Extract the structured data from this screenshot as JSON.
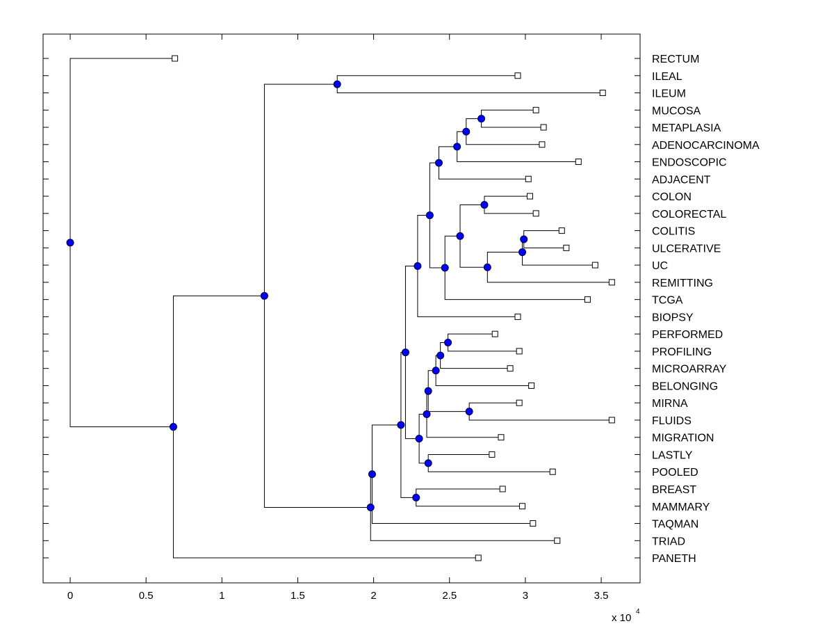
{
  "chart_data": {
    "type": "dendrogram",
    "title": "",
    "xlabel": "",
    "ylabel": "",
    "x_exponent_label": "x 10",
    "x_exponent_power": "4",
    "xlim": [
      -0.18,
      3.75
    ],
    "x_ticks": [
      0,
      0.5,
      1,
      1.5,
      2,
      2.5,
      3,
      3.5
    ],
    "x_tick_labels": [
      "0",
      "0.5",
      "1",
      "1.5",
      "2",
      "2.5",
      "3",
      "3.5"
    ],
    "grid": false,
    "colors": {
      "node_fill": "#0000ff",
      "line": "#000000",
      "leaf_fill": "#ffffff"
    },
    "leaves": [
      {
        "label": "RECTUM",
        "x": 0.69
      },
      {
        "label": "ILEAL",
        "x": 2.95
      },
      {
        "label": "ILEUM",
        "x": 3.51
      },
      {
        "label": "MUCOSA",
        "x": 3.07
      },
      {
        "label": "METAPLASIA",
        "x": 3.12
      },
      {
        "label": "ADENOCARCINOMA",
        "x": 3.11
      },
      {
        "label": "ENDOSCOPIC",
        "x": 3.35
      },
      {
        "label": "ADJACENT",
        "x": 3.02
      },
      {
        "label": "COLON",
        "x": 3.03
      },
      {
        "label": "COLORECTAL",
        "x": 3.07
      },
      {
        "label": "COLITIS",
        "x": 3.24
      },
      {
        "label": "ULCERATIVE",
        "x": 3.27
      },
      {
        "label": "UC",
        "x": 3.46
      },
      {
        "label": "REMITTING",
        "x": 3.57
      },
      {
        "label": "TCGA",
        "x": 3.41
      },
      {
        "label": "BIOPSY",
        "x": 2.95
      },
      {
        "label": "PERFORMED",
        "x": 2.8
      },
      {
        "label": "PROFILING",
        "x": 2.96
      },
      {
        "label": "MICROARRAY",
        "x": 2.9
      },
      {
        "label": "BELONGING",
        "x": 3.04
      },
      {
        "label": "MIRNA",
        "x": 2.96
      },
      {
        "label": "FLUIDS",
        "x": 3.57
      },
      {
        "label": "MIGRATION",
        "x": 2.84
      },
      {
        "label": "LASTLY",
        "x": 2.78
      },
      {
        "label": "POOLED",
        "x": 3.18
      },
      {
        "label": "BREAST",
        "x": 2.85
      },
      {
        "label": "MAMMARY",
        "x": 2.98
      },
      {
        "label": "TAQMAN",
        "x": 3.05
      },
      {
        "label": "TRIAD",
        "x": 3.21
      },
      {
        "label": "PANETH",
        "x": 2.69
      }
    ],
    "nodes": [
      {
        "id": "n_ileal_ileum",
        "x": 1.76,
        "children": [
          "L1",
          "L2"
        ]
      },
      {
        "id": "n_mucosa_metaplasia",
        "x": 2.71,
        "children": [
          "L3",
          "L4"
        ]
      },
      {
        "id": "n_adeno",
        "x": 2.61,
        "children": [
          "n_mucosa_metaplasia",
          "L5"
        ]
      },
      {
        "id": "n_endo",
        "x": 2.55,
        "children": [
          "n_adeno",
          "L6"
        ]
      },
      {
        "id": "n_adj",
        "x": 2.43,
        "children": [
          "n_endo",
          "L7"
        ]
      },
      {
        "id": "n_colon_colorectal",
        "x": 2.73,
        "children": [
          "L8",
          "L9"
        ]
      },
      {
        "id": "n_colitis_ulcerative",
        "x": 2.99,
        "children": [
          "L10",
          "L11"
        ]
      },
      {
        "id": "n_uc",
        "x": 2.98,
        "children": [
          "n_colitis_ulcerative",
          "L12"
        ]
      },
      {
        "id": "n_remitting",
        "x": 2.75,
        "children": [
          "n_uc",
          "L13"
        ]
      },
      {
        "id": "n_colon_group",
        "x": 2.57,
        "children": [
          "n_colon_colorectal",
          "n_remitting"
        ]
      },
      {
        "id": "n_tcga",
        "x": 2.47,
        "children": [
          "n_colon_group",
          "L14"
        ]
      },
      {
        "id": "n_upper",
        "x": 2.37,
        "children": [
          "n_adj",
          "n_tcga"
        ]
      },
      {
        "id": "n_biopsy",
        "x": 2.29,
        "children": [
          "n_upper",
          "L15"
        ]
      },
      {
        "id": "n_performed_profiling",
        "x": 2.49,
        "children": [
          "L16",
          "L17"
        ]
      },
      {
        "id": "n_microarray",
        "x": 2.44,
        "children": [
          "n_performed_profiling",
          "L18"
        ]
      },
      {
        "id": "n_belonging",
        "x": 2.41,
        "children": [
          "n_microarray",
          "L19"
        ]
      },
      {
        "id": "n_mirna_fluids",
        "x": 2.63,
        "children": [
          "L20",
          "L21"
        ]
      },
      {
        "id": "n_lower_a",
        "x": 2.36,
        "children": [
          "n_belonging",
          "n_mirna_fluids"
        ]
      },
      {
        "id": "n_migration",
        "x": 2.35,
        "children": [
          "n_lower_a",
          "L22"
        ]
      },
      {
        "id": "n_lastly_pooled",
        "x": 2.36,
        "children": [
          "L23",
          "L24"
        ]
      },
      {
        "id": "n_lower_b",
        "x": 2.3,
        "children": [
          "n_migration",
          "n_lastly_pooled"
        ]
      },
      {
        "id": "n_mid",
        "x": 2.21,
        "children": [
          "n_biopsy",
          "n_lower_b"
        ]
      },
      {
        "id": "n_breast_mammary",
        "x": 2.28,
        "children": [
          "L25",
          "L26"
        ]
      },
      {
        "id": "n_mid2",
        "x": 2.18,
        "children": [
          "n_mid",
          "n_breast_mammary"
        ]
      },
      {
        "id": "n_taqman",
        "x": 1.99,
        "children": [
          "n_mid2",
          "L27"
        ]
      },
      {
        "id": "n_triad",
        "x": 1.98,
        "children": [
          "n_taqman",
          "L28"
        ]
      },
      {
        "id": "n_big",
        "x": 1.28,
        "children": [
          "n_ileal_ileum",
          "n_triad"
        ]
      },
      {
        "id": "n_paneth",
        "x": 0.68,
        "children": [
          "n_big",
          "L29"
        ]
      },
      {
        "id": "n_root",
        "x": 0.0,
        "children": [
          "L0",
          "n_paneth"
        ]
      }
    ]
  }
}
